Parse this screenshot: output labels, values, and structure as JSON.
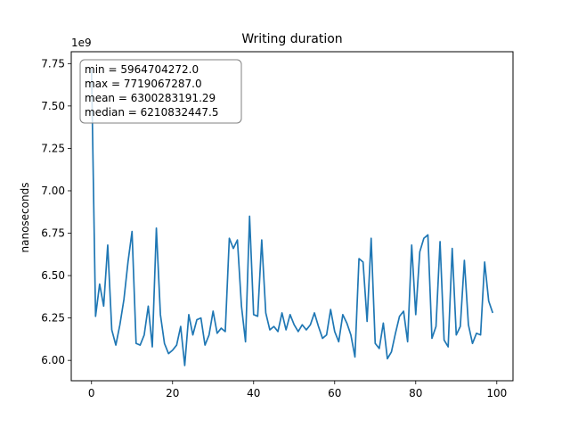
{
  "chart_data": {
    "type": "line",
    "title": "Writing duration",
    "xlabel": "",
    "ylabel": "nanoseconds",
    "y_offset_label": "1e9",
    "xlim": [
      -5,
      104
    ],
    "ylim": [
      5.88,
      7.82
    ],
    "x_ticks": [
      0,
      20,
      40,
      60,
      80,
      100
    ],
    "x_tick_labels": [
      "0",
      "20",
      "40",
      "60",
      "80",
      "100"
    ],
    "y_ticks": [
      6.0,
      6.25,
      6.5,
      6.75,
      7.0,
      7.25,
      7.5,
      7.75
    ],
    "y_tick_labels": [
      "6.00",
      "6.25",
      "6.50",
      "6.75",
      "7.00",
      "7.25",
      "7.50",
      "7.75"
    ],
    "grid": false,
    "line_color": "#1f77b4",
    "stats_box": {
      "lines": [
        "min = 5964704272.0",
        "max = 7719067287.0",
        "mean = 6300283191.29",
        "median = 6210832447.5"
      ],
      "placement": "top-left"
    },
    "series": [
      {
        "x": [
          0,
          1,
          2,
          3,
          4,
          5,
          6,
          7,
          8,
          9,
          10,
          11,
          12,
          13,
          14,
          15,
          16,
          17,
          18,
          19,
          20,
          21,
          22,
          23,
          24,
          25,
          26,
          27,
          28,
          29,
          30,
          31,
          32,
          33,
          34,
          35,
          36,
          37,
          38,
          39,
          40,
          41,
          42,
          43,
          44,
          45,
          46,
          47,
          48,
          49,
          50,
          51,
          52,
          53,
          54,
          55,
          56,
          57,
          58,
          59,
          60,
          61,
          62,
          63,
          64,
          65,
          66,
          67,
          68,
          69,
          70,
          71,
          72,
          73,
          74,
          75,
          76,
          77,
          78,
          79,
          80,
          81,
          82,
          83,
          84,
          85,
          86,
          87,
          88,
          89,
          90,
          91,
          92,
          93,
          94,
          95,
          96,
          97,
          98,
          99
        ],
        "values": [
          7.72,
          6.26,
          6.45,
          6.32,
          6.68,
          6.18,
          6.09,
          6.21,
          6.36,
          6.58,
          6.76,
          6.1,
          6.09,
          6.15,
          6.32,
          6.08,
          6.78,
          6.27,
          6.1,
          6.04,
          6.06,
          6.09,
          6.2,
          5.97,
          6.27,
          6.15,
          6.24,
          6.25,
          6.09,
          6.15,
          6.29,
          6.16,
          6.19,
          6.17,
          6.72,
          6.66,
          6.71,
          6.32,
          6.11,
          6.85,
          6.27,
          6.26,
          6.71,
          6.28,
          6.18,
          6.2,
          6.17,
          6.28,
          6.18,
          6.27,
          6.21,
          6.17,
          6.21,
          6.18,
          6.21,
          6.28,
          6.2,
          6.13,
          6.15,
          6.3,
          6.17,
          6.11,
          6.27,
          6.22,
          6.15,
          6.02,
          6.6,
          6.58,
          6.23,
          6.72,
          6.1,
          6.07,
          6.22,
          6.01,
          6.05,
          6.16,
          6.26,
          6.29,
          6.11,
          6.68,
          6.27,
          6.64,
          6.72,
          6.74,
          6.13,
          6.2,
          6.7,
          6.12,
          6.08,
          6.66,
          6.15,
          6.2,
          6.59,
          6.21,
          6.1,
          6.16,
          6.15,
          6.58,
          6.35,
          6.28
        ]
      }
    ]
  }
}
